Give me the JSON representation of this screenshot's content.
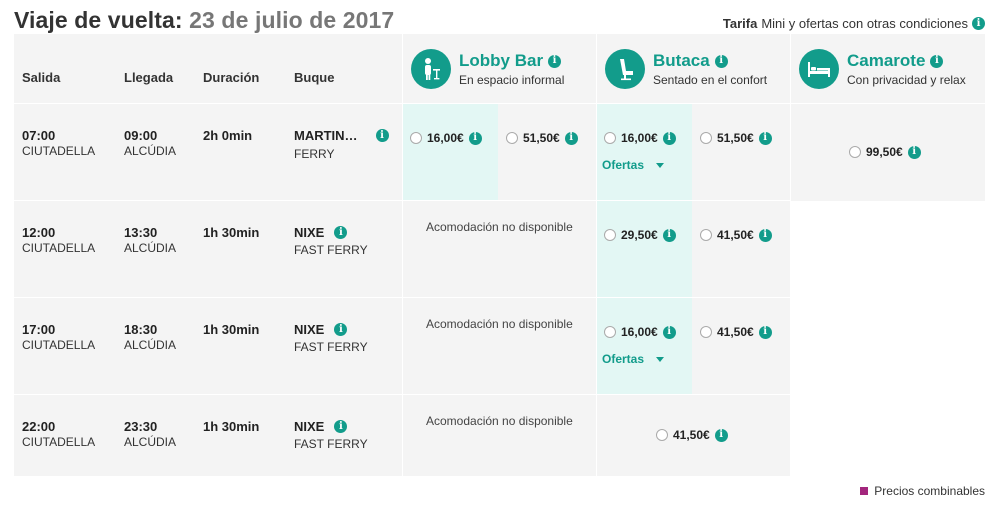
{
  "title": {
    "prefix": "Viaje de vuelta:",
    "date": "23 de julio de 2017"
  },
  "tarifa": {
    "label": "Tarifa",
    "text": "Mini y ofertas con otras condiciones"
  },
  "columns": {
    "salida": "Salida",
    "llegada": "Llegada",
    "duracion": "Duración",
    "buque": "Buque"
  },
  "accommodations": [
    {
      "name": "Lobby Bar",
      "subtitle": "En espacio informal",
      "icon": "lobby-bar-icon"
    },
    {
      "name": "Butaca",
      "subtitle": "Sentado en el confort",
      "icon": "seat-icon"
    },
    {
      "name": "Camarote",
      "subtitle": "Con privacidad y relax",
      "icon": "bed-icon"
    }
  ],
  "rows": [
    {
      "dep_time": "07:00",
      "dep_port": "CIUTADELLA",
      "arr_time": "09:00",
      "arr_port": "ALCÚDIA",
      "duration": "2h 0min",
      "ship": "MARTIN…",
      "ship_type": "FERRY",
      "lobby": [
        "16,00€",
        "51,50€"
      ],
      "butaca": [
        "16,00€",
        "51,50€"
      ],
      "butaca_ofertas": "Ofertas",
      "camarote": "99,50€"
    },
    {
      "dep_time": "12:00",
      "dep_port": "CIUTADELLA",
      "arr_time": "13:30",
      "arr_port": "ALCÚDIA",
      "duration": "1h 30min",
      "ship": "NIXE",
      "ship_type": "FAST FERRY",
      "lobby_na": "Acomodación no disponible",
      "butaca": [
        "29,50€",
        "41,50€"
      ]
    },
    {
      "dep_time": "17:00",
      "dep_port": "CIUTADELLA",
      "arr_time": "18:30",
      "arr_port": "ALCÚDIA",
      "duration": "1h 30min",
      "ship": "NIXE",
      "ship_type": "FAST FERRY",
      "lobby_na": "Acomodación no disponible",
      "butaca": [
        "16,00€",
        "41,50€"
      ],
      "butaca_ofertas": "Ofertas"
    },
    {
      "dep_time": "22:00",
      "dep_port": "CIUTADELLA",
      "arr_time": "23:30",
      "arr_port": "ALCÚDIA",
      "duration": "1h 30min",
      "ship": "NIXE",
      "ship_type": "FAST FERRY",
      "lobby_na": "Acomodación no disponible",
      "butaca_single": "41,50€"
    }
  ],
  "legend": "Precios combinables",
  "colors": {
    "accent": "#129c8b",
    "highlight": "#e3f7f4",
    "legend": "#a3267d",
    "board": "#f4f4f4"
  }
}
